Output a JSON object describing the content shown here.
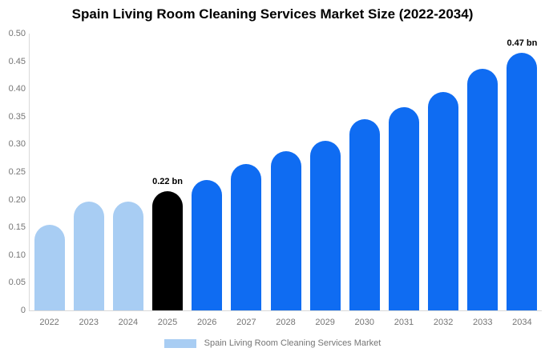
{
  "title": "Spain Living Room Cleaning Services Market Size (2022-2034)",
  "legend": {
    "label": "Spain Living Room Cleaning Services Market",
    "swatch_color": "#A8CDF3"
  },
  "colors": {
    "historical_bar": "#A8CDF3",
    "highlight_bar": "#000000",
    "forecast_bar": "#0F6CF2",
    "axis_line": "#D9D9D9",
    "tick_text": "#757575",
    "annotation_text": "#000000"
  },
  "chart_data": {
    "type": "bar",
    "title": "Spain Living Room Cleaning Services Market Size (2022-2034)",
    "xlabel": "",
    "ylabel": "",
    "categories": [
      "2022",
      "2023",
      "2024",
      "2025",
      "2026",
      "2027",
      "2028",
      "2029",
      "2030",
      "2031",
      "2032",
      "2033",
      "2034"
    ],
    "values": [
      0.155,
      0.197,
      0.196,
      0.215,
      0.235,
      0.265,
      0.287,
      0.306,
      0.345,
      0.367,
      0.395,
      0.437,
      0.466
    ],
    "point_colors": [
      "#A8CDF3",
      "#A8CDF3",
      "#A8CDF3",
      "#000000",
      "#0F6CF2",
      "#0F6CF2",
      "#0F6CF2",
      "#0F6CF2",
      "#0F6CF2",
      "#0F6CF2",
      "#0F6CF2",
      "#0F6CF2",
      "#0F6CF2"
    ],
    "annotations": [
      {
        "category": "2025",
        "text": "0.22 bn"
      },
      {
        "category": "2034",
        "text": "0.47 bn"
      }
    ],
    "ylim": [
      0,
      0.5
    ],
    "ytick_values": [
      0,
      0.05,
      0.1,
      0.15,
      0.2,
      0.25,
      0.3,
      0.35,
      0.4,
      0.45,
      0.5
    ],
    "ytick_labels": [
      "0",
      "0.05",
      "0.10",
      "0.15",
      "0.20",
      "0.25",
      "0.30",
      "0.35",
      "0.40",
      "0.45",
      "0.50"
    ],
    "grid": false,
    "legend_position": "bottom"
  }
}
